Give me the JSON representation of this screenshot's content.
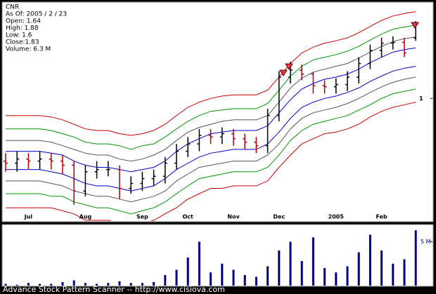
{
  "footer": "Advance Stock Pattern Scanner -- http://www.cisiova.com",
  "chart_data": [
    {
      "type": "ohlc",
      "annotations": [
        "CNR",
        "As Of: 2005 / 2 / 23",
        "Open: 1.64",
        "High: 1.88",
        "Low: 1.6",
        "Close:1.83",
        "Volume: 6.3 M"
      ],
      "categories": [
        null,
        null,
        "Jul",
        null,
        null,
        null,
        null,
        "Aug",
        null,
        null,
        null,
        null,
        "Sep",
        null,
        null,
        null,
        "Oct",
        null,
        null,
        null,
        "Nov",
        null,
        null,
        null,
        "Dec",
        null,
        null,
        null,
        null,
        "2005",
        null,
        null,
        null,
        "Feb",
        null,
        null,
        null
      ],
      "open": [
        0.6,
        0.59,
        0.61,
        0.6,
        0.61,
        0.6,
        0.58,
        0.47,
        0.55,
        0.56,
        0.56,
        0.48,
        0.5,
        0.52,
        0.53,
        0.59,
        0.65,
        0.69,
        0.74,
        0.73,
        0.75,
        0.72,
        0.7,
        0.68,
        0.87,
        1.19,
        1.26,
        1.22,
        1.11,
        1.1,
        1.12,
        1.19,
        1.33,
        1.48,
        1.57,
        1.58,
        1.64
      ],
      "high": [
        0.64,
        0.65,
        0.64,
        0.65,
        0.64,
        0.63,
        0.6,
        0.58,
        0.6,
        0.6,
        0.58,
        0.53,
        0.55,
        0.56,
        0.62,
        0.69,
        0.73,
        0.78,
        0.78,
        0.79,
        0.78,
        0.75,
        0.73,
        0.92,
        1.25,
        1.35,
        1.32,
        1.24,
        1.16,
        1.18,
        1.25,
        1.4,
        1.55,
        1.64,
        1.66,
        1.64,
        1.88
      ],
      "low": [
        0.55,
        0.55,
        0.56,
        0.56,
        0.56,
        0.54,
        0.42,
        0.45,
        0.52,
        0.53,
        0.44,
        0.46,
        0.47,
        0.49,
        0.5,
        0.56,
        0.62,
        0.65,
        0.69,
        0.69,
        0.68,
        0.66,
        0.64,
        0.64,
        0.83,
        1.13,
        1.16,
        1.04,
        1.04,
        1.04,
        1.06,
        1.13,
        1.27,
        1.4,
        1.49,
        1.4,
        1.6
      ],
      "close": [
        0.59,
        0.61,
        0.6,
        0.61,
        0.6,
        0.58,
        0.47,
        0.55,
        0.56,
        0.56,
        0.48,
        0.5,
        0.52,
        0.53,
        0.59,
        0.65,
        0.69,
        0.74,
        0.73,
        0.75,
        0.72,
        0.7,
        0.68,
        0.87,
        1.19,
        1.26,
        1.22,
        1.11,
        1.1,
        1.12,
        1.19,
        1.33,
        1.48,
        1.57,
        1.58,
        1.45,
        1.83
      ],
      "up_color": "#000000",
      "down_color": "#b00000",
      "series": [
        {
          "color": "#cc0000",
          "values": [
            0.87,
            0.87,
            0.87,
            0.87,
            0.86,
            0.84,
            0.81,
            0.78,
            0.77,
            0.77,
            0.75,
            0.74,
            0.75,
            0.77,
            0.81,
            0.87,
            0.93,
            0.97,
            1.0,
            1.02,
            1.03,
            1.03,
            1.03,
            1.07,
            1.19,
            1.33,
            1.45,
            1.52,
            1.57,
            1.6,
            1.64,
            1.71,
            1.8,
            1.89,
            1.96,
            2.0,
            2.03
          ]
        },
        {
          "color": "#009900",
          "values": [
            0.78,
            0.78,
            0.78,
            0.78,
            0.77,
            0.75,
            0.73,
            0.7,
            0.69,
            0.69,
            0.68,
            0.66,
            0.68,
            0.69,
            0.73,
            0.78,
            0.83,
            0.87,
            0.9,
            0.91,
            0.92,
            0.92,
            0.92,
            0.96,
            1.07,
            1.2,
            1.3,
            1.37,
            1.4,
            1.43,
            1.47,
            1.53,
            1.61,
            1.69,
            1.76,
            1.79,
            1.82
          ]
        },
        {
          "color": "#555555",
          "values": [
            0.71,
            0.71,
            0.71,
            0.71,
            0.7,
            0.68,
            0.66,
            0.64,
            0.63,
            0.63,
            0.61,
            0.6,
            0.61,
            0.63,
            0.66,
            0.71,
            0.76,
            0.79,
            0.81,
            0.83,
            0.84,
            0.84,
            0.84,
            0.87,
            0.97,
            1.09,
            1.18,
            1.24,
            1.27,
            1.3,
            1.33,
            1.39,
            1.46,
            1.53,
            1.59,
            1.63,
            1.65
          ]
        },
        {
          "color": "#0000cc",
          "values": [
            0.65,
            0.65,
            0.65,
            0.65,
            0.64,
            0.63,
            0.6,
            0.58,
            0.57,
            0.57,
            0.56,
            0.55,
            0.56,
            0.57,
            0.6,
            0.65,
            0.69,
            0.72,
            0.75,
            0.76,
            0.77,
            0.77,
            0.77,
            0.8,
            0.89,
            0.99,
            1.08,
            1.13,
            1.17,
            1.19,
            1.22,
            1.27,
            1.34,
            1.4,
            1.46,
            1.49,
            1.51
          ]
        },
        {
          "color": "#0000cc",
          "values": [
            0.56,
            0.56,
            0.56,
            0.56,
            0.55,
            0.54,
            0.52,
            0.5,
            0.49,
            0.49,
            0.48,
            0.47,
            0.48,
            0.49,
            0.52,
            0.56,
            0.59,
            0.62,
            0.64,
            0.65,
            0.66,
            0.66,
            0.66,
            0.69,
            0.76,
            0.85,
            0.93,
            0.97,
            1.0,
            1.02,
            1.05,
            1.09,
            1.15,
            1.2,
            1.25,
            1.28,
            1.3
          ]
        },
        {
          "color": "#555555",
          "values": [
            0.51,
            0.51,
            0.51,
            0.51,
            0.5,
            0.49,
            0.47,
            0.46,
            0.45,
            0.45,
            0.44,
            0.43,
            0.44,
            0.45,
            0.47,
            0.51,
            0.54,
            0.57,
            0.58,
            0.59,
            0.6,
            0.6,
            0.6,
            0.63,
            0.69,
            0.78,
            0.85,
            0.89,
            0.91,
            0.93,
            0.96,
            1.0,
            1.05,
            1.1,
            1.14,
            1.17,
            1.19
          ]
        },
        {
          "color": "#009900",
          "values": [
            0.46,
            0.46,
            0.46,
            0.46,
            0.45,
            0.45,
            0.43,
            0.42,
            0.41,
            0.41,
            0.4,
            0.39,
            0.4,
            0.41,
            0.43,
            0.46,
            0.49,
            0.52,
            0.53,
            0.54,
            0.55,
            0.55,
            0.55,
            0.57,
            0.63,
            0.71,
            0.77,
            0.81,
            0.83,
            0.85,
            0.87,
            0.91,
            0.95,
            1.0,
            1.04,
            1.06,
            1.08
          ]
        },
        {
          "color": "#cc0000",
          "values": [
            0.41,
            0.41,
            0.41,
            0.41,
            0.41,
            0.4,
            0.39,
            0.37,
            0.37,
            0.37,
            0.36,
            0.35,
            0.36,
            0.37,
            0.39,
            0.41,
            0.44,
            0.46,
            0.48,
            0.48,
            0.49,
            0.49,
            0.49,
            0.51,
            0.57,
            0.63,
            0.69,
            0.72,
            0.75,
            0.76,
            0.78,
            0.81,
            0.86,
            0.9,
            0.93,
            0.95,
            0.97
          ]
        }
      ],
      "ylim": [
        0.37,
        2.17
      ],
      "yticks": [
        1
      ],
      "log_scale": true,
      "grid": false
    },
    {
      "type": "bar",
      "color": "#000080",
      "values": [
        0.2,
        0.1,
        0.3,
        0.2,
        0.2,
        0.4,
        0.6,
        0.3,
        0.2,
        0.3,
        0.5,
        0.3,
        0.3,
        0.4,
        1.2,
        1.8,
        3.2,
        5.0,
        1.5,
        2.5,
        1.8,
        1.2,
        1.0,
        2.2,
        4.0,
        5.0,
        2.8,
        5.5,
        2.0,
        1.5,
        2.2,
        3.8,
        5.8,
        4.0,
        2.5,
        3.0,
        6.3
      ],
      "ylim": [
        0,
        6.8
      ],
      "yticks": [
        {
          "value": 5,
          "label": "5 M"
        }
      ],
      "grid": false
    }
  ]
}
